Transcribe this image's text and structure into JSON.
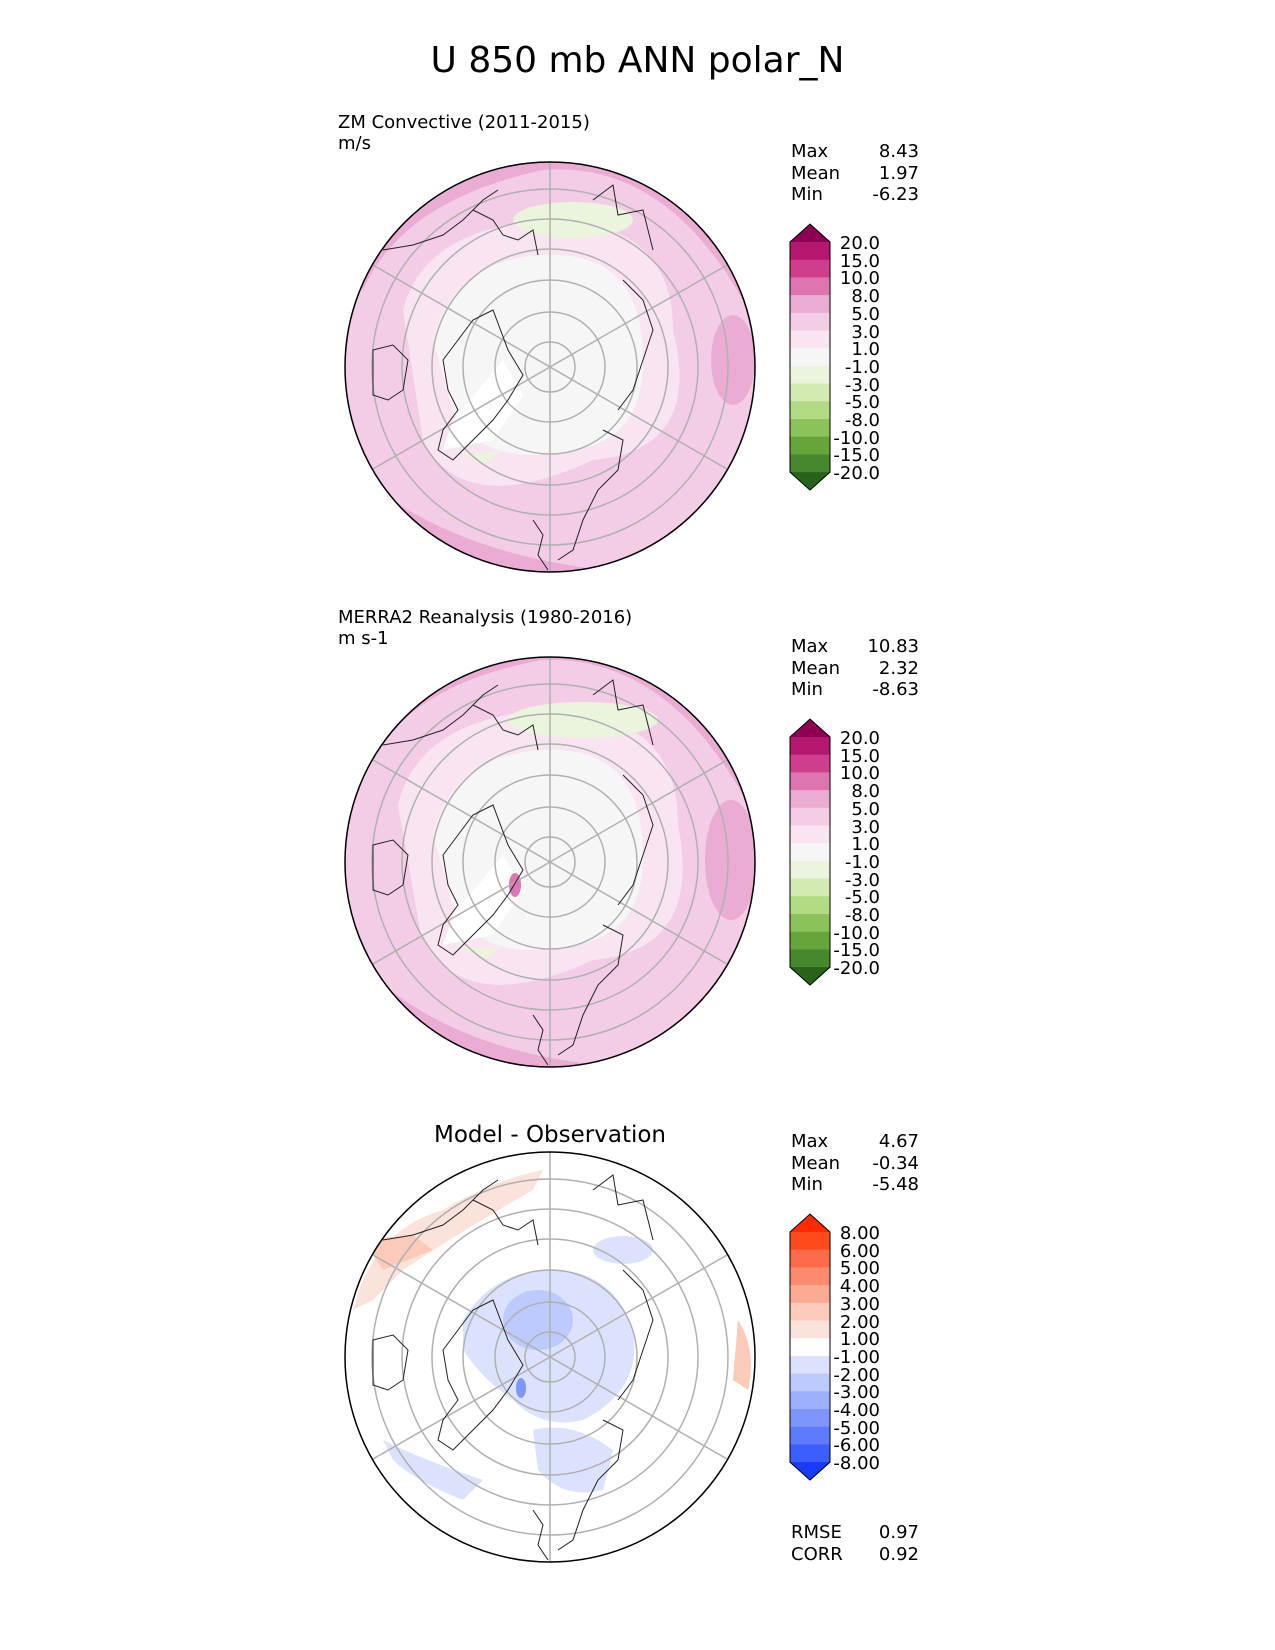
{
  "figure_title": "U 850 mb ANN polar_N",
  "panels": [
    {
      "name": "model",
      "label_line1": "ZM Convective (2011-2015)",
      "label_line2": "m/s",
      "panel_title": "",
      "stats": [
        {
          "label": "Max",
          "value": "8.43"
        },
        {
          "label": "Mean",
          "value": "1.97"
        },
        {
          "label": "Min",
          "value": "-6.23"
        }
      ],
      "colorbar": {
        "ticks": [
          "20.0",
          "15.0",
          "10.0",
          "8.0",
          "5.0",
          "3.0",
          "1.0",
          "-1.0",
          "-3.0",
          "-5.0",
          "-8.0",
          "-10.0",
          "-15.0",
          "-20.0"
        ],
        "colors": [
          "#8e0152",
          "#b4176e",
          "#cf3d8d",
          "#de74b0",
          "#ebacd3",
          "#f3cde6",
          "#f9e5f1",
          "#f6f6f6",
          "#ebf4dc",
          "#d3ebb1",
          "#b2dc84",
          "#8cc25a",
          "#66a53a",
          "#48882d",
          "#276419"
        ]
      }
    },
    {
      "name": "observation",
      "label_line1": "MERRA2 Reanalysis (1980-2016)",
      "label_line2": "m s-1",
      "panel_title": "",
      "stats": [
        {
          "label": "Max",
          "value": "10.83"
        },
        {
          "label": "Mean",
          "value": "2.32"
        },
        {
          "label": "Min",
          "value": "-8.63"
        }
      ],
      "colorbar": {
        "ticks": [
          "20.0",
          "15.0",
          "10.0",
          "8.0",
          "5.0",
          "3.0",
          "1.0",
          "-1.0",
          "-3.0",
          "-5.0",
          "-8.0",
          "-10.0",
          "-15.0",
          "-20.0"
        ],
        "colors": [
          "#8e0152",
          "#b4176e",
          "#cf3d8d",
          "#de74b0",
          "#ebacd3",
          "#f3cde6",
          "#f9e5f1",
          "#f6f6f6",
          "#ebf4dc",
          "#d3ebb1",
          "#b2dc84",
          "#8cc25a",
          "#66a53a",
          "#48882d",
          "#276419"
        ]
      }
    },
    {
      "name": "difference",
      "label_line1": "",
      "label_line2": "",
      "panel_title": "Model - Observation",
      "stats": [
        {
          "label": "Max",
          "value": "4.67"
        },
        {
          "label": "Mean",
          "value": "-0.34"
        },
        {
          "label": "Min",
          "value": "-5.48"
        }
      ],
      "bottom_stats": [
        {
          "label": "RMSE",
          "value": "0.97"
        },
        {
          "label": "CORR",
          "value": "0.92"
        }
      ],
      "colorbar": {
        "ticks": [
          "8.00",
          "6.00",
          "5.00",
          "4.00",
          "3.00",
          "2.00",
          "1.00",
          "-1.00",
          "-2.00",
          "-3.00",
          "-4.00",
          "-5.00",
          "-6.00",
          "-8.00"
        ],
        "colors": [
          "#ff2a00",
          "#ff4a1e",
          "#fd6b4a",
          "#fc8a6e",
          "#fbab92",
          "#fbcab8",
          "#fbe2da",
          "#ffffff",
          "#dbe2fd",
          "#bccafd",
          "#9cb0fc",
          "#7d95fc",
          "#5e7bfd",
          "#3d5eff",
          "#1a3bff"
        ]
      }
    }
  ],
  "chart_data": [
    {
      "type": "heatmap",
      "projection": "north polar stereographic",
      "title": "ZM Convective (2011-2015)",
      "units": "m/s",
      "levels": [
        -20,
        -15,
        -10,
        -8,
        -5,
        -3,
        -1,
        1,
        3,
        5,
        8,
        10,
        15,
        20
      ],
      "max": 8.43,
      "mean": 1.97,
      "min": -6.23
    },
    {
      "type": "heatmap",
      "projection": "north polar stereographic",
      "title": "MERRA2 Reanalysis (1980-2016)",
      "units": "m s-1",
      "levels": [
        -20,
        -15,
        -10,
        -8,
        -5,
        -3,
        -1,
        1,
        3,
        5,
        8,
        10,
        15,
        20
      ],
      "max": 10.83,
      "mean": 2.32,
      "min": -8.63
    },
    {
      "type": "heatmap",
      "projection": "north polar stereographic",
      "title": "Model - Observation",
      "levels": [
        -8,
        -6,
        -5,
        -4,
        -3,
        -2,
        -1,
        1,
        2,
        3,
        4,
        5,
        6,
        8
      ],
      "max": 4.67,
      "mean": -0.34,
      "min": -5.48,
      "rmse": 0.97,
      "corr": 0.92
    }
  ]
}
